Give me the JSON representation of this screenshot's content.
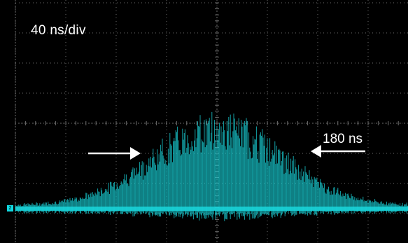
{
  "screen": {
    "timebase_label": "40 ns/div",
    "pulse_width_label": "180 ns",
    "channel_marker": "2",
    "trace_color": "#1ad6dc",
    "grid_color": "#6e6e6e",
    "background_color": "#000000",
    "arrow_color": "#ffffff"
  }
}
